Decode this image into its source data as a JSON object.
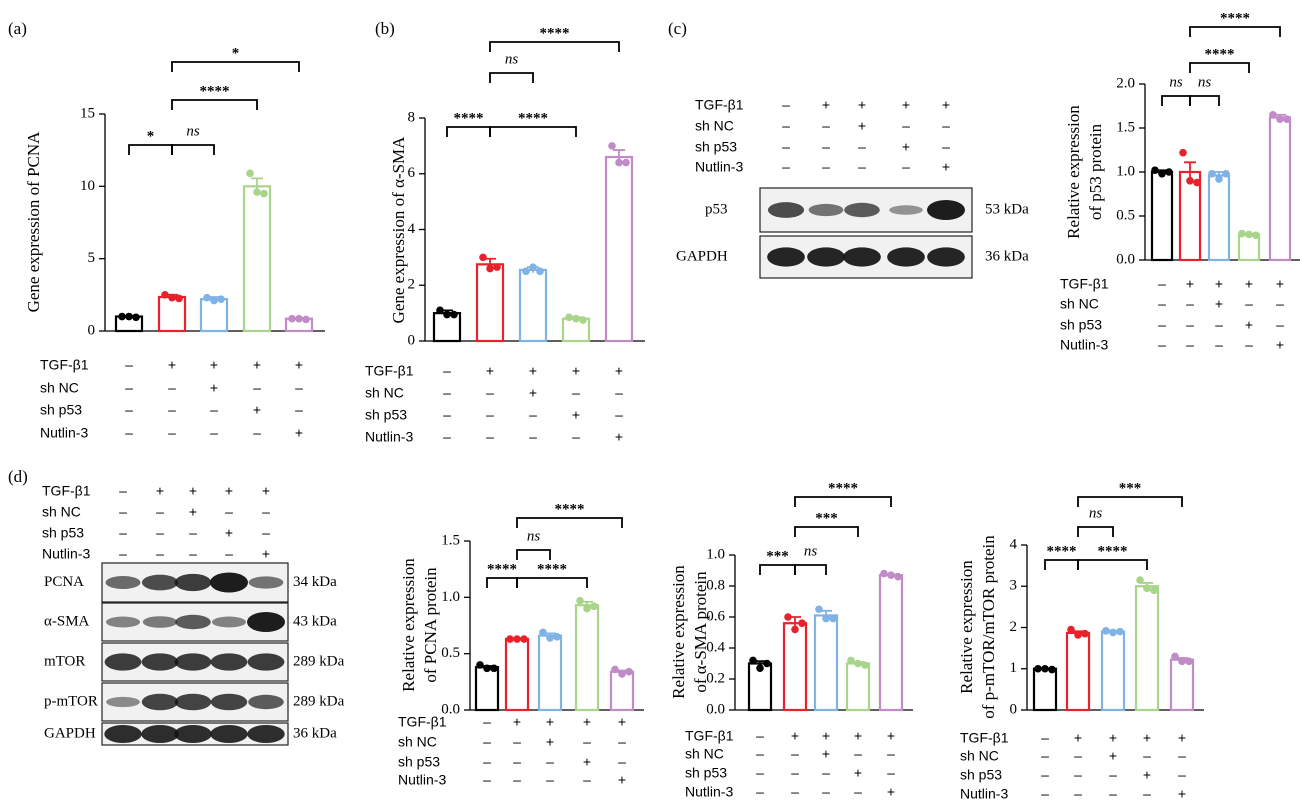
{
  "chart_data": [
    {
      "type": "bar",
      "panel": "(a)",
      "y_label": [
        "Gene expression of PCNA"
      ],
      "colors": [
        "#000000",
        "#e8212a",
        "#7fb2e5",
        "#a8d58a",
        "#c08bc6"
      ],
      "values": [
        1.0,
        2.35,
        2.2,
        10.0,
        0.85
      ],
      "errors": [
        0.05,
        0.15,
        0.15,
        0.55,
        0.05
      ],
      "points": [
        [
          1.0,
          1.0,
          0.95
        ],
        [
          2.5,
          2.3,
          2.25
        ],
        [
          2.3,
          2.1,
          2.2
        ],
        [
          10.9,
          9.6,
          9.5
        ],
        [
          0.85,
          0.85,
          0.8
        ]
      ],
      "ylim": [
        0,
        15
      ],
      "yticks": [
        0,
        5,
        10,
        15
      ],
      "annotations": [
        "*",
        "ns",
        "****",
        "*"
      ],
      "conditions": [
        {
          "label": "TGF-β1",
          "signs": [
            "–",
            "+",
            "+",
            "+",
            "+"
          ]
        },
        {
          "label": "sh NC",
          "signs": [
            "–",
            "–",
            "+",
            "–",
            "–"
          ]
        },
        {
          "label": "sh p53",
          "signs": [
            "–",
            "–",
            "–",
            "+",
            "–"
          ]
        },
        {
          "label": "Nutlin-3",
          "signs": [
            "–",
            "–",
            "–",
            "–",
            "+"
          ]
        }
      ]
    },
    {
      "type": "bar",
      "panel": "(b)",
      "y_label": [
        "Gene expression of α-SMA"
      ],
      "colors": [
        "#000000",
        "#e8212a",
        "#7fb2e5",
        "#a8d58a",
        "#c08bc6"
      ],
      "values": [
        1.0,
        2.75,
        2.55,
        0.8,
        6.6
      ],
      "errors": [
        0.1,
        0.2,
        0.1,
        0.05,
        0.25
      ],
      "points": [
        [
          1.1,
          0.95,
          0.95
        ],
        [
          3.0,
          2.6,
          2.65
        ],
        [
          2.5,
          2.65,
          2.5
        ],
        [
          0.85,
          0.8,
          0.75
        ],
        [
          7.0,
          6.4,
          6.4
        ]
      ],
      "ylim": [
        0,
        8
      ],
      "yticks": [
        0,
        2,
        4,
        6,
        8
      ],
      "annotations": [
        "****",
        "ns",
        "****",
        "****"
      ],
      "conditions": [
        {
          "label": "TGF-β1",
          "signs": [
            "–",
            "+",
            "+",
            "+",
            "+"
          ]
        },
        {
          "label": "sh NC",
          "signs": [
            "–",
            "–",
            "+",
            "–",
            "–"
          ]
        },
        {
          "label": "sh p53",
          "signs": [
            "–",
            "–",
            "–",
            "+",
            "–"
          ]
        },
        {
          "label": "Nutlin-3",
          "signs": [
            "–",
            "–",
            "–",
            "–",
            "+"
          ]
        }
      ]
    },
    {
      "type": "bar",
      "y_label": [
        "Relative expression",
        "of p53 protein"
      ],
      "colors": [
        "#000000",
        "#e8212a",
        "#7fb2e5",
        "#a8d58a",
        "#c08bc6"
      ],
      "values": [
        1.0,
        1.0,
        0.96,
        0.29,
        1.62
      ],
      "errors": [
        0.02,
        0.11,
        0.04,
        0.01,
        0.03
      ],
      "points": [
        [
          1.02,
          0.98,
          1.0
        ],
        [
          1.22,
          0.9,
          0.88
        ],
        [
          0.98,
          0.92,
          0.98
        ],
        [
          0.3,
          0.29,
          0.28
        ],
        [
          1.65,
          1.6,
          1.6
        ]
      ],
      "ylim": [
        0,
        2
      ],
      "yticks": [
        {
          "value": 0,
          "label": "0.0"
        },
        0.5,
        {
          "value": 1,
          "label": "1.0"
        },
        1.5,
        {
          "value": 2,
          "label": "2.0"
        }
      ],
      "annotations": [
        "ns",
        "ns",
        "****",
        "****"
      ],
      "conditions": [
        {
          "label": "TGF-β1",
          "signs": [
            "–",
            "+",
            "+",
            "+",
            "+"
          ]
        },
        {
          "label": "sh NC",
          "signs": [
            "–",
            "–",
            "+",
            "–",
            "–"
          ]
        },
        {
          "label": "sh p53",
          "signs": [
            "–",
            "–",
            "–",
            "+",
            "–"
          ]
        },
        {
          "label": "Nutlin-3",
          "signs": [
            "–",
            "–",
            "–",
            "–",
            "+"
          ]
        }
      ]
    },
    {
      "type": "bar",
      "y_label": [
        "Relative expression",
        "of PCNA protein"
      ],
      "colors": [
        "#000000",
        "#e8212a",
        "#7fb2e5",
        "#a8d58a",
        "#c08bc6"
      ],
      "values": [
        0.38,
        0.63,
        0.66,
        0.93,
        0.34
      ],
      "errors": [
        0.01,
        0.005,
        0.02,
        0.03,
        0.01
      ],
      "points": [
        [
          0.4,
          0.37,
          0.37
        ],
        [
          0.63,
          0.63,
          0.63
        ],
        [
          0.69,
          0.64,
          0.65
        ],
        [
          0.97,
          0.9,
          0.92
        ],
        [
          0.36,
          0.32,
          0.34
        ]
      ],
      "ylim": [
        0,
        1.5
      ],
      "yticks": [
        {
          "value": 0,
          "label": "0.0"
        },
        0.5,
        {
          "value": 1,
          "label": "1.0"
        },
        1.5
      ],
      "annotations": [
        "****",
        "ns",
        "****",
        "****"
      ],
      "conditions": [
        {
          "label": "TGF-β1",
          "signs": [
            "–",
            "+",
            "+",
            "+",
            "+"
          ]
        },
        {
          "label": "sh NC",
          "signs": [
            "–",
            "–",
            "+",
            "–",
            "–"
          ]
        },
        {
          "label": "sh p53",
          "signs": [
            "–",
            "–",
            "–",
            "+",
            "–"
          ]
        },
        {
          "label": "Nutlin-3",
          "signs": [
            "–",
            "–",
            "–",
            "–",
            "+"
          ]
        }
      ]
    },
    {
      "type": "bar",
      "y_label": [
        "Relative expression",
        "of α-SMA protein"
      ],
      "colors": [
        "#000000",
        "#e8212a",
        "#7fb2e5",
        "#a8d58a",
        "#c08bc6"
      ],
      "values": [
        0.3,
        0.56,
        0.61,
        0.3,
        0.87
      ],
      "errors": [
        0.015,
        0.04,
        0.03,
        0.01,
        0.005
      ],
      "points": [
        [
          0.32,
          0.27,
          0.3
        ],
        [
          0.6,
          0.52,
          0.56
        ],
        [
          0.65,
          0.59,
          0.59
        ],
        [
          0.32,
          0.3,
          0.29
        ],
        [
          0.88,
          0.87,
          0.86
        ]
      ],
      "ylim": [
        0,
        1
      ],
      "yticks": [
        {
          "value": 0,
          "label": "0.0"
        },
        0.2,
        0.4,
        0.6,
        0.8,
        {
          "value": 1,
          "label": "1.0"
        }
      ],
      "annotations": [
        "***",
        "ns",
        "***",
        "****"
      ],
      "conditions": [
        {
          "label": "TGF-β1",
          "signs": [
            "–",
            "+",
            "+",
            "+",
            "+"
          ]
        },
        {
          "label": "sh NC",
          "signs": [
            "–",
            "–",
            "+",
            "–",
            "–"
          ]
        },
        {
          "label": "sh p53",
          "signs": [
            "–",
            "–",
            "–",
            "+",
            "–"
          ]
        },
        {
          "label": "Nutlin-3",
          "signs": [
            "–",
            "–",
            "–",
            "–",
            "+"
          ]
        }
      ]
    },
    {
      "type": "bar",
      "y_label": [
        "Relative expression",
        "of p-mTOR/mTOR protein"
      ],
      "colors": [
        "#000000",
        "#e8212a",
        "#7fb2e5",
        "#a8d58a",
        "#c08bc6"
      ],
      "values": [
        1.0,
        1.87,
        1.9,
        3.0,
        1.22
      ],
      "errors": [
        0.01,
        0.04,
        0.02,
        0.08,
        0.04
      ],
      "points": [
        [
          1.0,
          1.0,
          0.98
        ],
        [
          1.95,
          1.82,
          1.85
        ],
        [
          1.92,
          1.88,
          1.9
        ],
        [
          3.15,
          2.95,
          2.9
        ],
        [
          1.3,
          1.18,
          1.18
        ]
      ],
      "ylim": [
        0,
        4
      ],
      "yticks": [
        0,
        1,
        2,
        3,
        4
      ],
      "annotations": [
        "****",
        "ns",
        "****",
        "***"
      ],
      "conditions": [
        {
          "label": "TGF-β1",
          "signs": [
            "–",
            "+",
            "+",
            "+",
            "+"
          ]
        },
        {
          "label": "sh NC",
          "signs": [
            "–",
            "–",
            "+",
            "–",
            "–"
          ]
        },
        {
          "label": "sh p53",
          "signs": [
            "–",
            "–",
            "–",
            "+",
            "–"
          ]
        },
        {
          "label": "Nutlin-3",
          "signs": [
            "–",
            "–",
            "–",
            "–",
            "+"
          ]
        }
      ]
    }
  ],
  "blots": [
    {
      "panel": "(c)",
      "conditions": [
        {
          "label": "TGF-β1",
          "signs": [
            "–",
            "+",
            "+",
            "+",
            "+"
          ]
        },
        {
          "label": "sh NC",
          "signs": [
            "–",
            "–",
            "+",
            "–",
            "–"
          ]
        },
        {
          "label": "sh p53",
          "signs": [
            "–",
            "–",
            "–",
            "+",
            "–"
          ]
        },
        {
          "label": "Nutlin-3",
          "signs": [
            "–",
            "–",
            "–",
            "–",
            "+"
          ]
        }
      ],
      "rows": [
        {
          "protein": "p53",
          "size": "53 kDa"
        },
        {
          "protein": "GAPDH",
          "size": "36 kDa"
        }
      ]
    },
    {
      "panel": "(d)",
      "conditions": [
        {
          "label": "TGF-β1",
          "signs": [
            "–",
            "+",
            "+",
            "+",
            "+"
          ]
        },
        {
          "label": "sh NC",
          "signs": [
            "–",
            "–",
            "+",
            "–",
            "–"
          ]
        },
        {
          "label": "sh p53",
          "signs": [
            "–",
            "–",
            "–",
            "+",
            "–"
          ]
        },
        {
          "label": "Nutlin-3",
          "signs": [
            "–",
            "–",
            "–",
            "–",
            "+"
          ]
        }
      ],
      "rows": [
        {
          "protein": "PCNA",
          "size": "34 kDa"
        },
        {
          "protein": "α-SMA",
          "size": "43 kDa"
        },
        {
          "protein": "mTOR",
          "size": "289 kDa"
        },
        {
          "protein": "p-mTOR",
          "size": "289 kDa"
        },
        {
          "protein": "GAPDH",
          "size": "36 kDa"
        }
      ]
    }
  ]
}
